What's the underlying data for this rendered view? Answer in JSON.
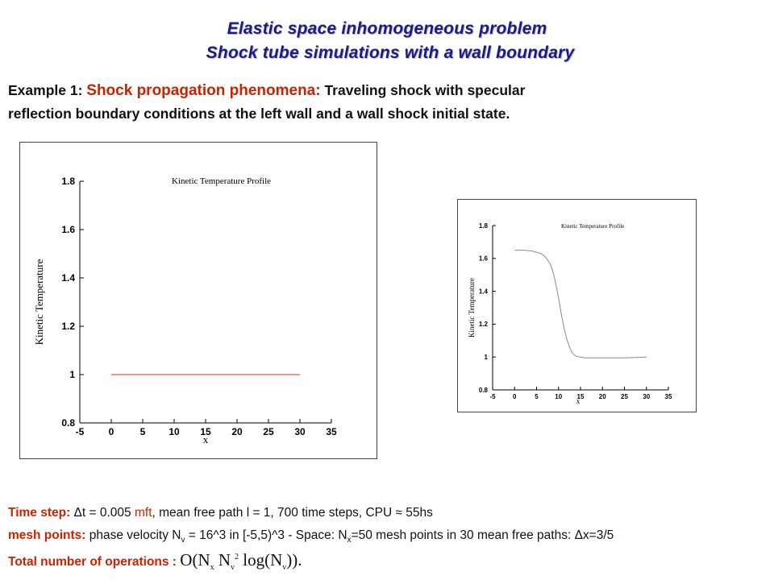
{
  "header": {
    "title_line1": "Elastic space inhomogeneous problem",
    "title_line2": "Shock tube simulations with a wall boundary"
  },
  "example": {
    "prefix": "Example 1: ",
    "highlight": "Shock propagation phenomena:",
    "line1_rest": " Traveling shock with specular",
    "line2": "reflection boundary conditions at the left  wall and a wall shock initial state."
  },
  "info": {
    "timestep_label": "Time step:",
    "timestep_a": " Δt = 0.005 ",
    "timestep_unit": "mft",
    "timestep_b": ", mean free path l = 1,      700 time steps,       CPU ≈ 55hs",
    "mesh_label": "mesh points:",
    "mesh_a": " phase velocity  N",
    "mesh_sub_v": "v",
    "mesh_b": " = 16^3 in [-5,5)^3  -   Space:  N",
    "mesh_sub_x": "x",
    "mesh_c": "=50 mesh points in 30 mean free paths: Δx=3/5",
    "ops_label": "Total number of operations",
    "ops_colon": " : ",
    "ops_a": "O(N",
    "ops_sub_x": "x",
    "ops_b": " N",
    "ops_sub_v": "v",
    "ops_sup": "2",
    "ops_c": " log(N",
    "ops_sub_v2": "v",
    "ops_d": "))."
  },
  "chart_data": [
    {
      "type": "line",
      "title": "Kinetic Temperature Profile",
      "xlabel": "x",
      "ylabel": "Kinetic Temperature",
      "xlim": [
        -5,
        35
      ],
      "ylim": [
        0.8,
        1.8
      ],
      "xticks": [
        "-5",
        "0",
        "5",
        "10",
        "15",
        "20",
        "25",
        "30",
        "35"
      ],
      "yticks": [
        "0.8",
        "1",
        "1.2",
        "1.4",
        "1.6",
        "1.8"
      ],
      "grid": false,
      "series": [
        {
          "color": "#e05a4a",
          "x": [
            0,
            30
          ],
          "y": [
            1.0,
            1.0
          ]
        }
      ]
    },
    {
      "type": "line",
      "title": "Kinetic Temperature Profile",
      "xlabel": "x",
      "ylabel": "Kinetic Temperature",
      "xlim": [
        -5,
        35
      ],
      "ylim": [
        0.8,
        1.8
      ],
      "xticks": [
        "-5",
        "0",
        "5",
        "10",
        "15",
        "20",
        "25",
        "30",
        "35"
      ],
      "yticks": [
        "0.8",
        "1",
        "1.2",
        "1.4",
        "1.6",
        "1.8"
      ],
      "grid": false,
      "series": [
        {
          "color": "#8a8a8a",
          "x": [
            0,
            2,
            4,
            6,
            7,
            8,
            8.5,
            9,
            9.5,
            10,
            10.5,
            11,
            11.5,
            12,
            12.5,
            13,
            13.5,
            14,
            15,
            16,
            18,
            20,
            25,
            30
          ],
          "y": [
            1.65,
            1.65,
            1.645,
            1.63,
            1.61,
            1.57,
            1.54,
            1.49,
            1.43,
            1.36,
            1.28,
            1.21,
            1.15,
            1.1,
            1.06,
            1.03,
            1.015,
            1.005,
            1.0,
            0.995,
            0.995,
            0.995,
            0.995,
            1.0
          ]
        }
      ]
    }
  ]
}
